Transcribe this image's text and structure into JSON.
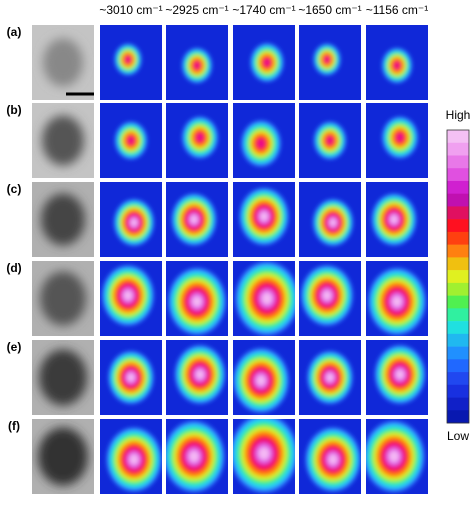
{
  "columns": [
    "~3010 cm⁻¹",
    "~2925 cm⁻¹",
    "~1740 cm⁻¹",
    "~1650 cm⁻¹",
    "~1156 cm⁻¹"
  ],
  "rows": [
    "(a)",
    "(b)",
    "(c)",
    "(d)",
    "(e)",
    "(f)"
  ],
  "colorbar": {
    "high": "High",
    "low": "Low"
  }
}
